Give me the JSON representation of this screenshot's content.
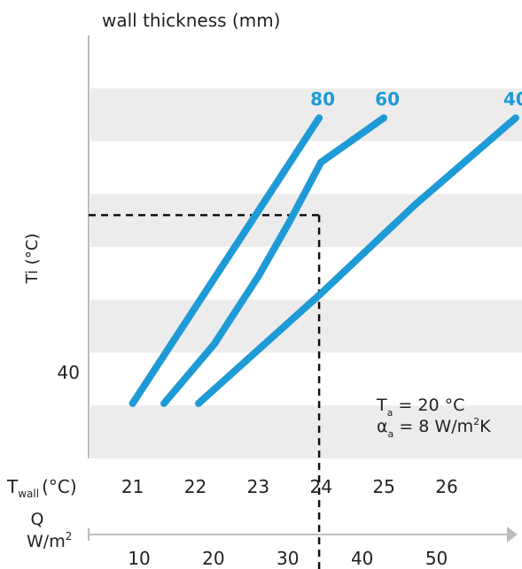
{
  "chart_data": {
    "type": "line",
    "title": "wall thickness (mm)",
    "ylabel": "Ti (°C)",
    "y_tick_labels": [
      {
        "value": 40,
        "label": "40"
      }
    ],
    "x_twall": {
      "label_main": "T",
      "label_sub": "wall",
      "label_unit": "(°C)",
      "ticks": [
        21,
        22,
        23,
        24,
        25,
        26
      ],
      "range": [
        20.3,
        27.2
      ]
    },
    "x_q": {
      "label_line1": "Q",
      "label_line2_main": "W/m",
      "label_line2_sup": "2",
      "ticks": [
        10,
        20,
        30,
        40,
        50
      ],
      "range": [
        3.2,
        61.5
      ]
    },
    "y_range": [
      0,
      10
    ],
    "series": [
      {
        "name": "80",
        "points": [
          [
            21.0,
            1.3
          ],
          [
            23.97,
            8.05
          ]
        ]
      },
      {
        "name": "60",
        "points": [
          [
            21.5,
            1.3
          ],
          [
            22.3,
            2.7
          ],
          [
            23.0,
            4.3
          ],
          [
            23.5,
            5.6
          ],
          [
            24.0,
            7.0
          ],
          [
            25.0,
            8.05
          ]
        ]
      },
      {
        "name": "40",
        "points": [
          [
            22.05,
            1.3
          ],
          [
            24.0,
            3.9
          ],
          [
            25.5,
            6.0
          ],
          [
            27.1,
            8.05
          ]
        ]
      }
    ],
    "reference_point": {
      "twall": 23.97,
      "q": 30,
      "ti": 5.75
    },
    "annotation": {
      "ta_main": "T",
      "ta_sub": "a",
      "ta_rest": " = 20 °C",
      "alpha_main": "α",
      "alpha_sub": "a",
      "alpha_rest": " = 8 W/m",
      "alpha_sup": "2",
      "alpha_end": "K"
    },
    "colors": {
      "series": "#1e9ad6",
      "band": "#ececec",
      "axis": "#bdbdbd",
      "text": "#222222"
    }
  }
}
